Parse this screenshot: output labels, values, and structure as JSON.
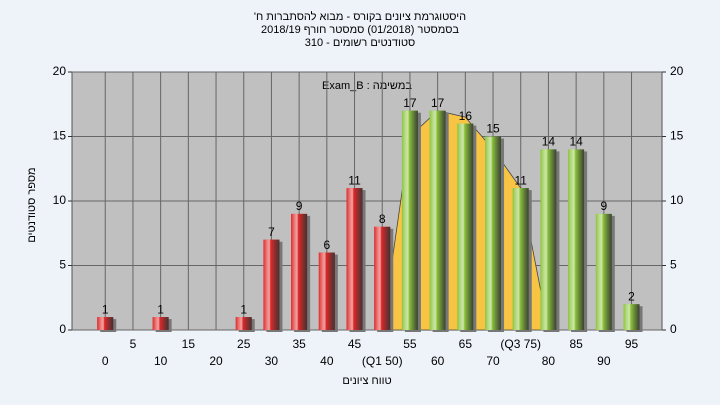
{
  "chart_data": {
    "type": "bar",
    "title": [
      "היסטוגרמת ציונים בקורס - מבוא להסתברות ח'",
      "בסמסטר (01/2018) סמסטר חורף 2018/19",
      "סטודנטים רשומים - 310"
    ],
    "annotation": "במשימה : Exam_B",
    "x_label": "טווח ציונים",
    "y_label": "מספר סטודנטים",
    "categories": [
      "0",
      "5",
      "10",
      "15",
      "20",
      "25",
      "30",
      "35",
      "40",
      "45",
      "(Q1 50)",
      "55",
      "60",
      "65",
      "70",
      "(Q3 75)",
      "80",
      "85",
      "90",
      "95"
    ],
    "values": [
      1,
      0,
      1,
      0,
      0,
      1,
      7,
      9,
      6,
      11,
      8,
      17,
      17,
      16,
      15,
      11,
      14,
      14,
      9,
      2
    ],
    "value_labels": [
      "1",
      null,
      "1",
      null,
      null,
      "1",
      "7",
      "9",
      "6",
      "11",
      "8",
      "17",
      "17",
      "16",
      "15",
      "11",
      "14",
      "14",
      "9",
      "2"
    ],
    "colors": [
      "#e02828",
      "#e02828",
      "#e02828",
      "#e02828",
      "#e02828",
      "#e02828",
      "#e02828",
      "#e02828",
      "#e02828",
      "#e02828",
      "#e02828",
      "#8cc43c",
      "#8cc43c",
      "#8cc43c",
      "#8cc43c",
      "#8cc43c",
      "#8cc43c",
      "#8cc43c",
      "#8cc43c",
      "#8cc43c"
    ],
    "curve": {
      "x": [
        50,
        55,
        60,
        65,
        70,
        75,
        80
      ],
      "values": [
        0,
        15,
        17,
        16.5,
        14,
        11,
        0
      ],
      "color": "#f7c443"
    },
    "ylim": [
      0,
      20
    ],
    "yticks": [
      0,
      5,
      10,
      15,
      20
    ],
    "grid": true
  }
}
